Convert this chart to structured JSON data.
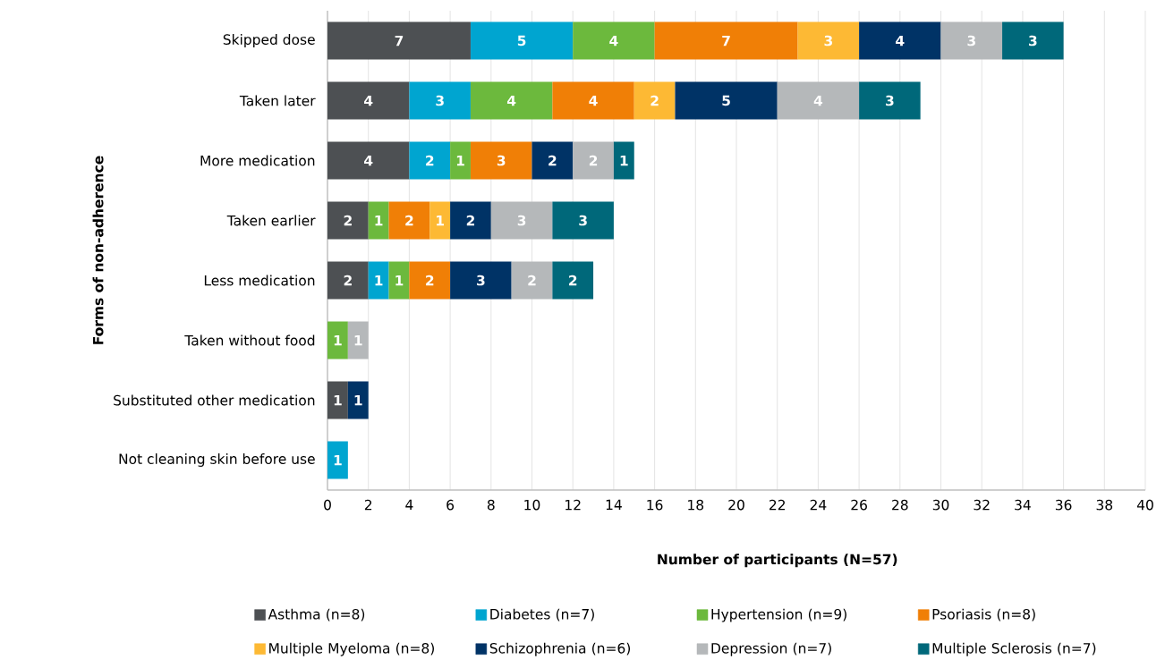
{
  "chart_data": {
    "type": "bar",
    "orientation": "horizontal",
    "stacked": true,
    "data_labels": true,
    "grid": "x",
    "legend": "bottom",
    "xlabel": "Number of participants (N=57)",
    "ylabel": "Forms of non-adherence",
    "categories": [
      "Skipped dose",
      "Taken later",
      "More medication",
      "Taken earlier",
      "Less medication",
      "Taken without food",
      "Substituted other medication",
      "Not cleaning skin before use"
    ],
    "xlim": [
      0,
      40
    ],
    "xticks": [
      0,
      2,
      4,
      6,
      8,
      10,
      12,
      14,
      16,
      18,
      20,
      22,
      24,
      26,
      28,
      30,
      32,
      34,
      36,
      38,
      40
    ],
    "series": [
      {
        "name": "Asthma (n=8)",
        "color": "#4d5053",
        "values": [
          7,
          4,
          4,
          2,
          2,
          null,
          1,
          null
        ]
      },
      {
        "name": "Diabetes (n=7)",
        "color": "#00a5d0",
        "values": [
          5,
          3,
          2,
          null,
          1,
          null,
          null,
          1
        ]
      },
      {
        "name": "Hypertension (n=9)",
        "color": "#6cb93d",
        "values": [
          4,
          4,
          1,
          1,
          1,
          1,
          null,
          null
        ]
      },
      {
        "name": "Psoriasis (n=8)",
        "color": "#f07f06",
        "values": [
          7,
          4,
          3,
          2,
          2,
          null,
          null,
          null
        ]
      },
      {
        "name": "Multiple Myeloma (n=8)",
        "color": "#fdb934",
        "values": [
          3,
          2,
          null,
          1,
          null,
          null,
          null,
          null
        ]
      },
      {
        "name": "Schizophrenia (n=6)",
        "color": "#003366",
        "values": [
          4,
          5,
          2,
          2,
          3,
          null,
          1,
          null
        ]
      },
      {
        "name": "Depression (n=7)",
        "color": "#b5b8ba",
        "values": [
          3,
          4,
          2,
          3,
          2,
          1,
          null,
          null
        ]
      },
      {
        "name": "Multiple Sclerosis (n=7)",
        "color": "#00687a",
        "values": [
          3,
          3,
          1,
          3,
          2,
          null,
          null,
          null
        ]
      }
    ]
  }
}
